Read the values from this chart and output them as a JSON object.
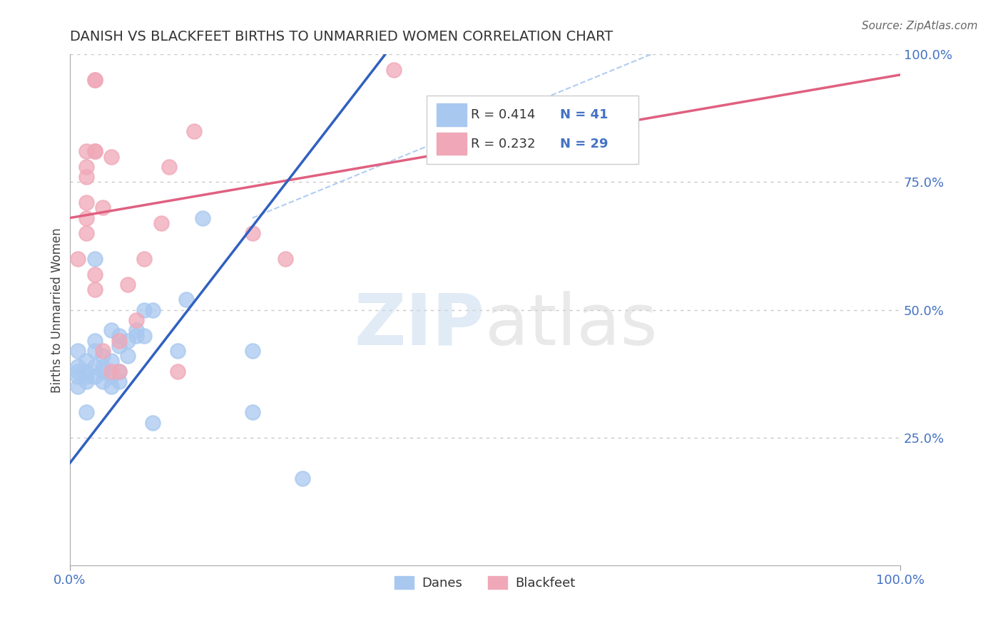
{
  "title": "DANISH VS BLACKFEET BIRTHS TO UNMARRIED WOMEN CORRELATION CHART",
  "source": "Source: ZipAtlas.com",
  "ylabel": "Births to Unmarried Women",
  "watermark": "ZIPatlas",
  "legend_blue_r": "R = 0.414",
  "legend_blue_n": "N = 41",
  "legend_pink_r": "R = 0.232",
  "legend_pink_n": "N = 29",
  "legend_label_blue": "Danes",
  "legend_label_pink": "Blackfeet",
  "xlim": [
    0.0,
    1.0
  ],
  "ylim": [
    0.0,
    1.0
  ],
  "xtick_labels": [
    "0.0%",
    "100.0%"
  ],
  "ytick_labels": [
    "25.0%",
    "50.0%",
    "75.0%",
    "100.0%"
  ],
  "ytick_positions": [
    0.25,
    0.5,
    0.75,
    1.0
  ],
  "xtick_positions": [
    0.0,
    1.0
  ],
  "hline_positions": [
    0.25,
    0.5,
    0.75,
    1.0
  ],
  "blue_color": "#A8C8F0",
  "pink_color": "#F0A8B8",
  "blue_line_color": "#3060C0",
  "pink_line_color": "#E06080",
  "blue_dashed_color": "#A8C8F0",
  "right_tick_color": "#4472C4",
  "background_color": "#FFFFFF",
  "grid_color": "#C8C8C8",
  "danes_x": [
    0.01,
    0.01,
    0.01,
    0.01,
    0.01,
    0.02,
    0.02,
    0.02,
    0.02,
    0.02,
    0.03,
    0.03,
    0.03,
    0.03,
    0.03,
    0.04,
    0.04,
    0.04,
    0.04,
    0.05,
    0.05,
    0.05,
    0.05,
    0.06,
    0.06,
    0.06,
    0.06,
    0.07,
    0.07,
    0.08,
    0.08,
    0.09,
    0.09,
    0.1,
    0.1,
    0.13,
    0.14,
    0.16,
    0.22,
    0.22,
    0.28
  ],
  "danes_y": [
    0.35,
    0.37,
    0.38,
    0.39,
    0.42,
    0.3,
    0.36,
    0.37,
    0.38,
    0.4,
    0.37,
    0.39,
    0.42,
    0.44,
    0.6,
    0.36,
    0.38,
    0.39,
    0.41,
    0.35,
    0.37,
    0.4,
    0.46,
    0.36,
    0.38,
    0.43,
    0.45,
    0.41,
    0.44,
    0.45,
    0.46,
    0.45,
    0.5,
    0.28,
    0.5,
    0.42,
    0.52,
    0.68,
    0.3,
    0.42,
    0.17
  ],
  "blackfeet_x": [
    0.01,
    0.02,
    0.02,
    0.02,
    0.02,
    0.02,
    0.02,
    0.03,
    0.03,
    0.03,
    0.03,
    0.03,
    0.03,
    0.04,
    0.04,
    0.05,
    0.05,
    0.06,
    0.06,
    0.07,
    0.08,
    0.09,
    0.11,
    0.12,
    0.13,
    0.15,
    0.22,
    0.26,
    0.39
  ],
  "blackfeet_y": [
    0.6,
    0.65,
    0.68,
    0.71,
    0.76,
    0.78,
    0.81,
    0.54,
    0.57,
    0.81,
    0.81,
    0.95,
    0.95,
    0.42,
    0.7,
    0.38,
    0.8,
    0.38,
    0.44,
    0.55,
    0.48,
    0.6,
    0.67,
    0.78,
    0.38,
    0.85,
    0.65,
    0.6,
    0.97
  ],
  "blue_line_x0": 0.0,
  "blue_line_x1": 0.38,
  "blue_line_y0": 0.2,
  "blue_line_y1": 1.0,
  "pink_line_x0": 0.0,
  "pink_line_x1": 1.0,
  "pink_line_y0": 0.68,
  "pink_line_y1": 0.96,
  "dashed_line_x0": 0.22,
  "dashed_line_x1": 0.7,
  "dashed_line_y0": 0.68,
  "dashed_line_y1": 1.0
}
